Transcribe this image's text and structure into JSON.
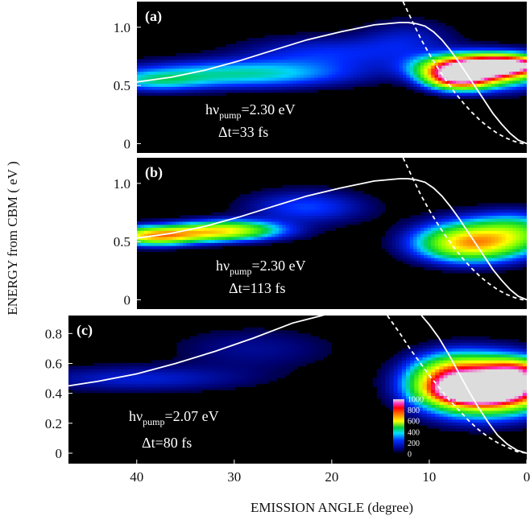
{
  "figure": {
    "xlabel": "EMISSION ANGLE  (degree)",
    "ylabel": "ENERGY from CBM ( eV )"
  },
  "chart_data": [
    {
      "type": "heatmap",
      "panel_label": "(a)",
      "annotation": {
        "line1_main": "hν",
        "line1_sub": "pump",
        "line1_rest": "=2.30 eV",
        "line2": "Δt=33 fs"
      },
      "xlim": [
        46,
        0
      ],
      "ylim": [
        -0.08,
        1.22
      ],
      "x_ticks": [],
      "y_ticks": [
        {
          "v": 0,
          "label": "0"
        },
        {
          "v": 0.5,
          "label": "0.5"
        },
        {
          "v": 1.0,
          "label": "1.0"
        }
      ],
      "solid_curve": {
        "x": [
          46,
          42,
          38,
          34,
          30,
          26,
          22,
          18,
          15,
          14,
          13,
          12,
          11,
          10,
          9,
          8,
          7,
          6,
          5,
          4,
          3,
          2,
          1,
          0
        ],
        "y": [
          0.53,
          0.57,
          0.63,
          0.71,
          0.8,
          0.89,
          0.96,
          1.02,
          1.04,
          1.04,
          1.03,
          1.01,
          0.96,
          0.89,
          0.8,
          0.7,
          0.59,
          0.48,
          0.37,
          0.26,
          0.17,
          0.09,
          0.03,
          0.0
        ]
      },
      "dashed_curve": {
        "x": [
          14.6,
          13.5,
          12.5,
          11.5,
          10.5,
          9.5,
          8.5,
          7.5,
          6.5,
          5.5,
          4.5,
          3.5,
          2.5,
          1.5,
          0.5,
          0
        ],
        "y": [
          1.22,
          1.05,
          0.9,
          0.77,
          0.65,
          0.54,
          0.44,
          0.35,
          0.27,
          0.2,
          0.14,
          0.09,
          0.05,
          0.02,
          0.0,
          0.0
        ]
      },
      "blobs": [
        {
          "x": 34,
          "y": 0.6,
          "sx": 9,
          "sy": 0.08,
          "v": 230
        },
        {
          "x": 44,
          "y": 0.54,
          "sx": 4,
          "sy": 0.06,
          "v": 160
        },
        {
          "x": 24,
          "y": 0.78,
          "sx": 7,
          "sy": 0.1,
          "v": 110
        },
        {
          "x": 14,
          "y": 0.9,
          "sx": 4,
          "sy": 0.12,
          "v": 80
        },
        {
          "x": 6,
          "y": 0.66,
          "sx": 4,
          "sy": 0.07,
          "v": 800
        },
        {
          "x": 2,
          "y": 0.68,
          "sx": 3,
          "sy": 0.05,
          "v": 650
        },
        {
          "x": 8,
          "y": 0.58,
          "sx": 2.5,
          "sy": 0.07,
          "v": 900
        },
        {
          "x": 3,
          "y": 0.62,
          "sx": 4,
          "sy": 0.1,
          "v": 300
        }
      ]
    },
    {
      "type": "heatmap",
      "panel_label": "(b)",
      "annotation": {
        "line1_main": "hν",
        "line1_sub": "pump",
        "line1_rest": "=2.30 eV",
        "line2": "Δt=113 fs"
      },
      "xlim": [
        46,
        0
      ],
      "ylim": [
        -0.08,
        1.22
      ],
      "x_ticks": [],
      "y_ticks": [
        {
          "v": 0,
          "label": "0"
        },
        {
          "v": 0.5,
          "label": "0.5"
        },
        {
          "v": 1.0,
          "label": "1.0"
        }
      ],
      "solid_curve": {
        "x": [
          46,
          42,
          38,
          34,
          30,
          26,
          22,
          18,
          15,
          14,
          13,
          12,
          11,
          10,
          9,
          8,
          7,
          6,
          5,
          4,
          3,
          2,
          1,
          0
        ],
        "y": [
          0.53,
          0.57,
          0.63,
          0.71,
          0.8,
          0.89,
          0.96,
          1.02,
          1.04,
          1.04,
          1.03,
          1.01,
          0.96,
          0.89,
          0.8,
          0.7,
          0.59,
          0.48,
          0.37,
          0.26,
          0.17,
          0.09,
          0.03,
          0.0
        ]
      },
      "dashed_curve": {
        "x": [
          14.6,
          13.5,
          12.5,
          11.5,
          10.5,
          9.5,
          8.5,
          7.5,
          6.5,
          5.5,
          4.5,
          3.5,
          2.5,
          1.5,
          0.5,
          0
        ],
        "y": [
          1.22,
          1.05,
          0.9,
          0.77,
          0.65,
          0.54,
          0.44,
          0.35,
          0.27,
          0.2,
          0.14,
          0.09,
          0.05,
          0.02,
          0.0,
          0.0
        ]
      },
      "blobs": [
        {
          "x": 40,
          "y": 0.57,
          "sx": 6,
          "sy": 0.05,
          "v": 420
        },
        {
          "x": 35,
          "y": 0.62,
          "sx": 4,
          "sy": 0.05,
          "v": 300
        },
        {
          "x": 44,
          "y": 0.54,
          "sx": 3,
          "sy": 0.05,
          "v": 330
        },
        {
          "x": 26,
          "y": 0.8,
          "sx": 5,
          "sy": 0.1,
          "v": 130
        },
        {
          "x": 7,
          "y": 0.48,
          "sx": 4,
          "sy": 0.1,
          "v": 430
        },
        {
          "x": 4,
          "y": 0.55,
          "sx": 5,
          "sy": 0.12,
          "v": 250
        },
        {
          "x": 1,
          "y": 0.6,
          "sx": 3,
          "sy": 0.1,
          "v": 150
        }
      ]
    },
    {
      "type": "heatmap",
      "panel_label": "(c)",
      "annotation": {
        "line1_main": "hν",
        "line1_sub": "pump",
        "line1_rest": "=2.07 eV",
        "line2": "Δt=80 fs"
      },
      "xlim": [
        47,
        0
      ],
      "ylim": [
        -0.07,
        0.92
      ],
      "x_ticks": [
        {
          "v": 40,
          "label": "40"
        },
        {
          "v": 30,
          "label": "30"
        },
        {
          "v": 20,
          "label": "20"
        },
        {
          "v": 10,
          "label": "10"
        },
        {
          "v": 0,
          "label": "0"
        }
      ],
      "y_ticks": [
        {
          "v": 0,
          "label": "0"
        },
        {
          "v": 0.2,
          "label": "0.2"
        },
        {
          "v": 0.4,
          "label": "0.4"
        },
        {
          "v": 0.6,
          "label": "0.6"
        },
        {
          "v": 0.8,
          "label": "0.8"
        }
      ],
      "solid_curve": {
        "x": [
          47,
          44,
          40,
          36,
          32,
          28,
          24,
          21,
          20.5
        ],
        "y": [
          0.45,
          0.48,
          0.53,
          0.6,
          0.68,
          0.77,
          0.87,
          0.92,
          0.93
        ]
      },
      "solid_curve_2": {
        "x": [
          10.8,
          10,
          9,
          8,
          7,
          6,
          5,
          4,
          3,
          2,
          1,
          0
        ],
        "y": [
          0.92,
          0.86,
          0.77,
          0.66,
          0.54,
          0.42,
          0.31,
          0.21,
          0.12,
          0.06,
          0.02,
          0.0
        ]
      },
      "dashed_curve": {
        "x": [
          14.3,
          13,
          12,
          11,
          10,
          9,
          8,
          7,
          6,
          5,
          4,
          3,
          2,
          1,
          0
        ],
        "y": [
          0.92,
          0.8,
          0.7,
          0.61,
          0.52,
          0.44,
          0.36,
          0.29,
          0.22,
          0.16,
          0.11,
          0.07,
          0.04,
          0.01,
          0.0
        ]
      },
      "blobs": [
        {
          "x": 5,
          "y": 0.42,
          "sx": 2.5,
          "sy": 0.05,
          "v": 1000
        },
        {
          "x": 5,
          "y": 0.45,
          "sx": 4,
          "sy": 0.12,
          "v": 700
        },
        {
          "x": 2,
          "y": 0.46,
          "sx": 3.5,
          "sy": 0.1,
          "v": 600
        },
        {
          "x": 8,
          "y": 0.5,
          "sx": 2.5,
          "sy": 0.1,
          "v": 350
        },
        {
          "x": 1,
          "y": 0.55,
          "sx": 2,
          "sy": 0.05,
          "v": 320
        },
        {
          "x": 40,
          "y": 0.5,
          "sx": 8,
          "sy": 0.06,
          "v": 95
        },
        {
          "x": 28,
          "y": 0.7,
          "sx": 6,
          "sy": 0.1,
          "v": 60
        }
      ],
      "colorbar": {
        "ticks": [
          {
            "v": 1000,
            "label": "1000"
          },
          {
            "v": 800,
            "label": "800"
          },
          {
            "v": 600,
            "label": "600"
          },
          {
            "v": 400,
            "label": "400"
          },
          {
            "v": 200,
            "label": "200"
          },
          {
            "v": 0,
            "label": "0"
          }
        ]
      }
    }
  ],
  "colors": {
    "background": "#000000",
    "curves": "#ffffff"
  }
}
